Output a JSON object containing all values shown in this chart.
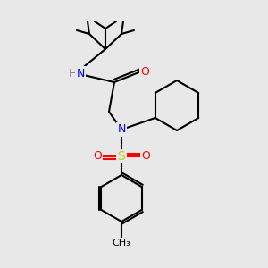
{
  "background_color": "#e8e8e8",
  "figsize": [
    3.0,
    3.0
  ],
  "dpi": 100,
  "atom_colors": {
    "C": "#000000",
    "N": "#0000ff",
    "O": "#ff0000",
    "S": "#cccc00",
    "H": "#808080"
  },
  "bond_color": "#000000",
  "bond_width": 1.5,
  "font_size": 9
}
